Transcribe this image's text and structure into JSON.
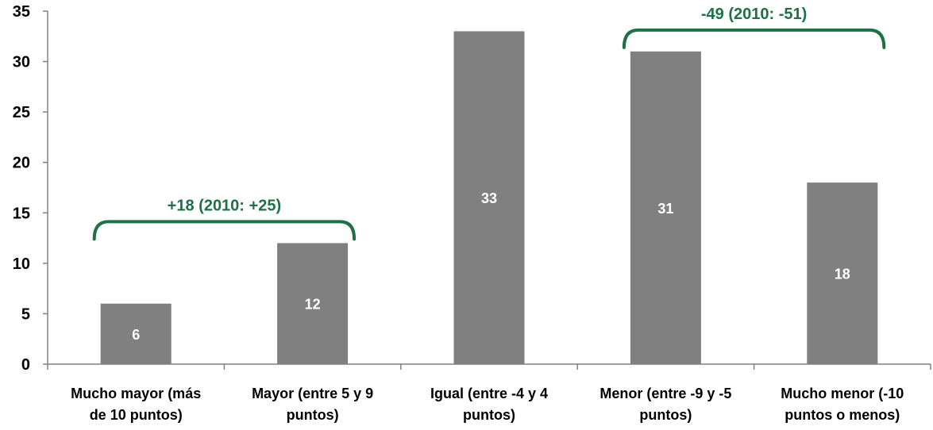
{
  "chart_data": {
    "type": "bar",
    "title": "",
    "xlabel": "",
    "ylabel": "",
    "ylim": [
      0,
      35
    ],
    "yticks": [
      0,
      5,
      10,
      15,
      20,
      25,
      30,
      35
    ],
    "grid": false,
    "legend": "none",
    "categories": [
      [
        "Mucho mayor (más",
        "de 10 puntos)"
      ],
      [
        "Mayor (entre 5 y 9",
        "puntos)"
      ],
      [
        "Igual (entre -4 y 4",
        "puntos)"
      ],
      [
        "Menor (entre -9 y -5",
        "puntos)"
      ],
      [
        "Mucho menor (-10",
        "puntos o menos)"
      ]
    ],
    "values": [
      6,
      12,
      33,
      31,
      18
    ],
    "data_labels": [
      "6",
      "12",
      "33",
      "31",
      "18"
    ],
    "annotations": [
      {
        "text": "+18 (2010: +25)",
        "spans_categories": [
          0,
          1
        ]
      },
      {
        "text": "-49 (2010: -51)",
        "spans_categories": [
          3,
          4
        ]
      }
    ],
    "colors": {
      "bar": "#808080",
      "bar_label": "#ffffff",
      "annotation": "#1e7145",
      "axis": "#808080"
    }
  }
}
